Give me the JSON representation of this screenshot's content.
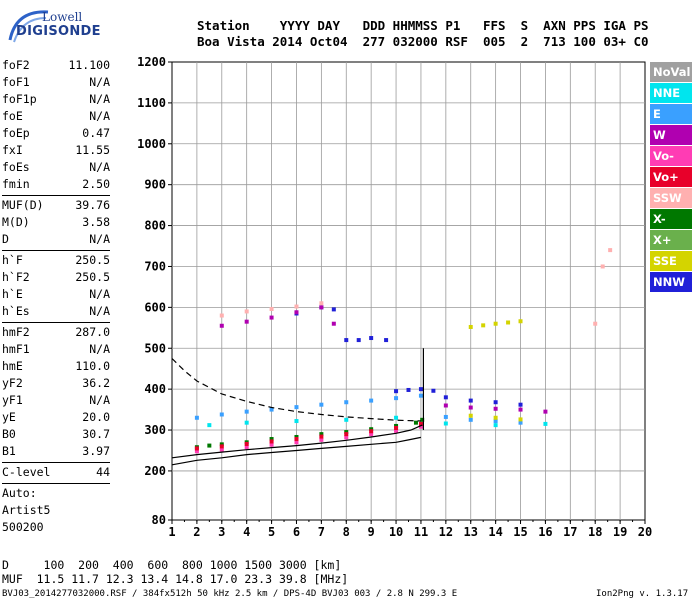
{
  "logo": {
    "line1": "Lowell",
    "line2": "DIGISONDE"
  },
  "header": {
    "row1": "Station    YYYY DAY   DDD HHMMSS P1   FFS  S  AXN PPS IGA PS",
    "row2": "Boa Vista 2014 Oct04  277 032000 RSF  005  2  713 100 03+ C0"
  },
  "params": [
    {
      "k": "foF2",
      "v": "11.100"
    },
    {
      "k": "foF1",
      "v": "N/A"
    },
    {
      "k": "foF1p",
      "v": "N/A"
    },
    {
      "k": "foE",
      "v": "N/A"
    },
    {
      "k": "foEp",
      "v": "0.47"
    },
    {
      "k": "fxI",
      "v": "11.55"
    },
    {
      "k": "foEs",
      "v": "N/A"
    },
    {
      "k": "fmin",
      "v": "2.50"
    },
    {
      "sep": true
    },
    {
      "k": "MUF(D)",
      "v": "39.76"
    },
    {
      "k": "M(D)",
      "v": "3.58"
    },
    {
      "k": "D",
      "v": "N/A"
    },
    {
      "sep": true
    },
    {
      "k": "h`F",
      "v": "250.5"
    },
    {
      "k": "h`F2",
      "v": "250.5"
    },
    {
      "k": "h`E",
      "v": "N/A"
    },
    {
      "k": "h`Es",
      "v": "N/A"
    },
    {
      "sep": true
    },
    {
      "k": "hmF2",
      "v": "287.0"
    },
    {
      "k": "hmF1",
      "v": "N/A"
    },
    {
      "k": "hmE",
      "v": "110.0"
    },
    {
      "k": "yF2",
      "v": "36.2"
    },
    {
      "k": "yF1",
      "v": "N/A"
    },
    {
      "k": "yE",
      "v": "20.0"
    },
    {
      "k": "B0",
      "v": "30.7"
    },
    {
      "k": "B1",
      "v": "3.97"
    },
    {
      "sep": true
    },
    {
      "k": "C-level",
      "v": "44"
    },
    {
      "sep": true
    },
    {
      "k": "Auto:",
      "v": ""
    },
    {
      "k": "Artist5",
      "v": ""
    },
    {
      "k": "500200",
      "v": ""
    }
  ],
  "legend": [
    {
      "label": "NoVal",
      "color": "#a0a0a0"
    },
    {
      "label": "NNE",
      "color": "#00e5ee"
    },
    {
      "label": "E",
      "color": "#3aa0ff"
    },
    {
      "label": "W",
      "color": "#b000b0"
    },
    {
      "label": "Vo-",
      "color": "#ff3cb4"
    },
    {
      "label": "Vo+",
      "color": "#e8002a"
    },
    {
      "label": "SSW",
      "color": "#ffb0b0"
    },
    {
      "label": "X-",
      "color": "#007800"
    },
    {
      "label": "X+",
      "color": "#6ab04c"
    },
    {
      "label": "SSE",
      "color": "#d4d400"
    },
    {
      "label": "NNW",
      "color": "#2020d8"
    }
  ],
  "footer": {
    "d_row": "D     100  200  400  600  800 1000 1500 3000 [km]",
    "muf_row": "MUF  11.5 11.7 12.3 13.4 14.8 17.0 23.3 39.8 [MHz]",
    "info": "BVJ03_2014277032000.RSF / 384fx512h 50 kHz 2.5 km / DPS-4D BVJ03 003 / 2.8 N 299.3 E",
    "version": "Ion2Png v. 1.3.17"
  },
  "chart_data": {
    "type": "scatter",
    "xlabel": "",
    "ylabel": "",
    "xlim": [
      1,
      20
    ],
    "ylim": [
      80,
      1200
    ],
    "x_ticks": [
      1,
      2,
      3,
      4,
      5,
      6,
      7,
      8,
      9,
      10,
      11,
      12,
      13,
      14,
      15,
      16,
      17,
      18,
      19,
      20
    ],
    "y_ticks": [
      80,
      200,
      300,
      400,
      500,
      600,
      700,
      800,
      900,
      1000,
      1100,
      1200
    ],
    "grid": true,
    "series": [
      {
        "name": "X-",
        "values": [
          [
            2,
            258
          ],
          [
            2.5,
            262
          ],
          [
            3,
            265
          ],
          [
            4,
            270
          ],
          [
            5,
            278
          ],
          [
            6,
            283
          ],
          [
            7,
            290
          ],
          [
            8,
            295
          ],
          [
            9,
            302
          ],
          [
            10,
            310
          ],
          [
            10.8,
            318
          ],
          [
            11.05,
            325
          ]
        ]
      },
      {
        "name": "Vo-",
        "values": [
          [
            2,
            248
          ],
          [
            3,
            252
          ],
          [
            4,
            258
          ],
          [
            5,
            264
          ],
          [
            6,
            270
          ],
          [
            7,
            276
          ],
          [
            8,
            282
          ],
          [
            9,
            290
          ],
          [
            10,
            298
          ],
          [
            11,
            308
          ]
        ]
      },
      {
        "name": "Vo+",
        "values": [
          [
            2,
            255
          ],
          [
            3,
            260
          ],
          [
            4,
            266
          ],
          [
            5,
            272
          ],
          [
            6,
            278
          ],
          [
            7,
            284
          ],
          [
            8,
            290
          ],
          [
            9,
            297
          ],
          [
            10,
            305
          ],
          [
            11,
            315
          ]
        ]
      },
      {
        "name": "E",
        "values": [
          [
            2,
            330
          ],
          [
            3,
            338
          ],
          [
            4,
            345
          ],
          [
            5,
            350
          ],
          [
            6,
            356
          ],
          [
            7,
            362
          ],
          [
            8,
            368
          ],
          [
            9,
            372
          ],
          [
            10,
            378
          ],
          [
            11,
            384
          ],
          [
            12,
            332
          ],
          [
            13,
            325
          ],
          [
            14,
            322
          ],
          [
            15,
            318
          ]
        ]
      },
      {
        "name": "NNE",
        "values": [
          [
            2.5,
            312
          ],
          [
            4,
            318
          ],
          [
            6,
            322
          ],
          [
            8,
            325
          ],
          [
            10,
            330
          ],
          [
            12,
            316
          ],
          [
            14,
            312
          ],
          [
            16,
            315
          ]
        ]
      },
      {
        "name": "NNW",
        "values": [
          [
            8,
            520
          ],
          [
            8.5,
            520
          ],
          [
            9,
            525
          ],
          [
            9.6,
            520
          ],
          [
            10,
            395
          ],
          [
            10.5,
            398
          ],
          [
            11,
            400
          ],
          [
            11.5,
            396
          ],
          [
            12,
            380
          ],
          [
            13,
            372
          ],
          [
            14,
            368
          ],
          [
            15,
            362
          ],
          [
            6,
            585
          ],
          [
            7,
            600
          ],
          [
            7.5,
            595
          ]
        ]
      },
      {
        "name": "W",
        "values": [
          [
            3,
            555
          ],
          [
            4,
            565
          ],
          [
            5,
            575
          ],
          [
            6,
            588
          ],
          [
            7,
            600
          ],
          [
            7.5,
            560
          ],
          [
            12,
            360
          ],
          [
            13,
            355
          ],
          [
            14,
            352
          ],
          [
            15,
            350
          ],
          [
            16,
            345
          ]
        ]
      },
      {
        "name": "SSE",
        "values": [
          [
            13,
            552
          ],
          [
            13.5,
            556
          ],
          [
            14,
            560
          ],
          [
            14.5,
            563
          ],
          [
            15,
            566
          ],
          [
            13,
            335
          ],
          [
            14,
            330
          ],
          [
            15,
            326
          ]
        ]
      },
      {
        "name": "SSW",
        "values": [
          [
            3,
            580
          ],
          [
            4,
            590
          ],
          [
            5,
            596
          ],
          [
            6,
            602
          ],
          [
            7,
            610
          ],
          [
            18,
            560
          ],
          [
            18.3,
            700
          ],
          [
            18.6,
            740
          ]
        ]
      }
    ],
    "traces": [
      {
        "name": "solid-lower",
        "values": [
          [
            1,
            215
          ],
          [
            2,
            226
          ],
          [
            3,
            232
          ],
          [
            4,
            240
          ],
          [
            5,
            245
          ],
          [
            6,
            250
          ],
          [
            7,
            255
          ],
          [
            8,
            260
          ],
          [
            9,
            265
          ],
          [
            10,
            270
          ],
          [
            10.5,
            276
          ],
          [
            11,
            282
          ]
        ]
      },
      {
        "name": "solid-upper",
        "values": [
          [
            1,
            232
          ],
          [
            2,
            240
          ],
          [
            3,
            246
          ],
          [
            4,
            252
          ],
          [
            5,
            257
          ],
          [
            6,
            262
          ],
          [
            7,
            268
          ],
          [
            8,
            275
          ],
          [
            9,
            283
          ],
          [
            10,
            292
          ],
          [
            10.6,
            300
          ],
          [
            11.05,
            312
          ]
        ]
      },
      {
        "name": "dashed",
        "values": [
          [
            1,
            475
          ],
          [
            1.5,
            445
          ],
          [
            2,
            420
          ],
          [
            3,
            388
          ],
          [
            4,
            370
          ],
          [
            5,
            355
          ],
          [
            6,
            345
          ],
          [
            7,
            338
          ],
          [
            8,
            332
          ],
          [
            9,
            328
          ],
          [
            10,
            324
          ],
          [
            11,
            322
          ]
        ]
      },
      {
        "name": "vertical",
        "values": [
          [
            11.1,
            300
          ],
          [
            11.1,
            500
          ]
        ]
      }
    ]
  }
}
